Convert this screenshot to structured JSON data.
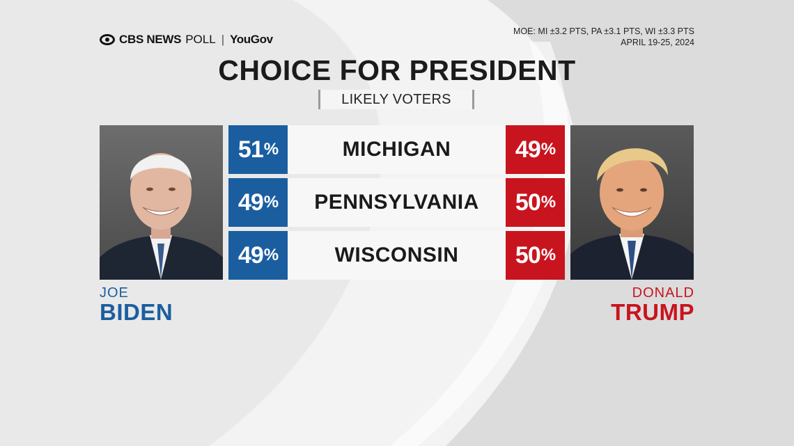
{
  "header": {
    "brand": "CBS NEWS",
    "poll": "POLL",
    "separator": "|",
    "partner": "YouGov",
    "moe": "MOE: MI ±3.2 PTS, PA ±3.1 PTS, WI ±3.3 PTS",
    "dates": "APRIL 19-25, 2024"
  },
  "title": "CHOICE FOR PRESIDENT",
  "subtitle": "LIKELY VOTERS",
  "candidates": {
    "left": {
      "first": "JOE",
      "last": "BIDEN",
      "color": "#1b5ea0"
    },
    "right": {
      "first": "DONALD",
      "last": "TRUMP",
      "color": "#c8141e"
    }
  },
  "rows": [
    {
      "state": "MICHIGAN",
      "biden": "51",
      "trump": "49"
    },
    {
      "state": "PENNSYLVANIA",
      "biden": "49",
      "trump": "50"
    },
    {
      "state": "WISCONSIN",
      "biden": "49",
      "trump": "50"
    }
  ],
  "percent_symbol": "%",
  "colors": {
    "biden_blue": "#1b5ea0",
    "trump_red": "#c8141e",
    "background": "#e9e9e9"
  }
}
